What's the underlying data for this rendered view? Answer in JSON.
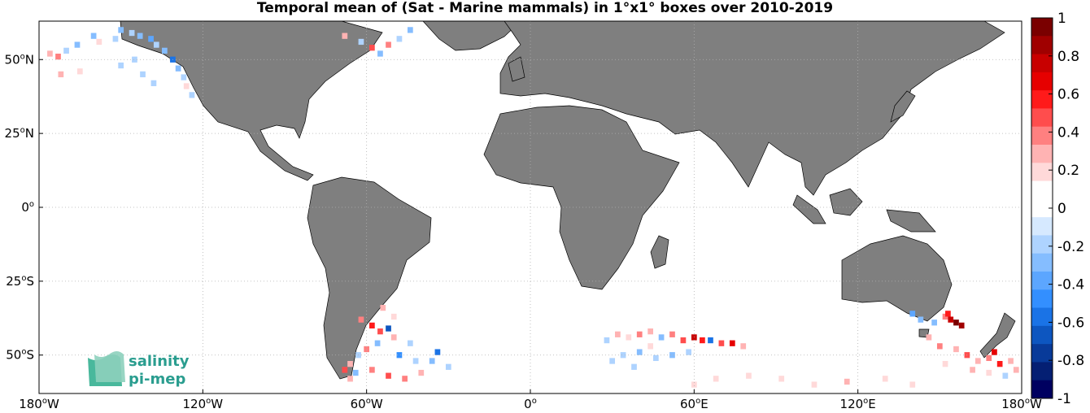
{
  "title": "Temporal mean of (Sat - Marine mammals) in 1°x1° boxes over 2010-2019",
  "map": {
    "projection": "equirectangular",
    "lon_range": [
      -180,
      180
    ],
    "lat_range": [
      -63,
      63
    ],
    "grid": "dotted",
    "land_color": "#7f7f7f",
    "ocean_color": "#ffffff",
    "x_ticks": [
      {
        "lon": -180,
        "deg": "180",
        "hemi": "W"
      },
      {
        "lon": -120,
        "deg": "120",
        "hemi": "W"
      },
      {
        "lon": -60,
        "deg": "60",
        "hemi": "W"
      },
      {
        "lon": 0,
        "deg": "0",
        "hemi": ""
      },
      {
        "lon": 60,
        "deg": "60",
        "hemi": "E"
      },
      {
        "lon": 120,
        "deg": "120",
        "hemi": "E"
      },
      {
        "lon": 180,
        "deg": "180",
        "hemi": "W"
      }
    ],
    "y_ticks": [
      {
        "lat": 50,
        "deg": "50",
        "hemi": "N"
      },
      {
        "lat": 25,
        "deg": "25",
        "hemi": "N"
      },
      {
        "lat": 0,
        "deg": "0",
        "hemi": ""
      },
      {
        "lat": -25,
        "deg": "25",
        "hemi": "S"
      },
      {
        "lat": -50,
        "deg": "50",
        "hemi": "S"
      }
    ]
  },
  "colorbar": {
    "min": -1,
    "max": 1,
    "tick_labels": [
      "1",
      "0.8",
      "0.6",
      "0.4",
      "0.2",
      "0",
      "-0.2",
      "-0.4",
      "-0.6",
      "-0.8",
      "-1"
    ],
    "tick_values": [
      1,
      0.8,
      0.6,
      0.4,
      0.2,
      0,
      -0.2,
      -0.4,
      -0.6,
      -0.8,
      -1
    ],
    "colors_top_to_bottom": [
      "#7a0000",
      "#a00000",
      "#c80000",
      "#e60000",
      "#ff1a1a",
      "#ff4d4d",
      "#ff8080",
      "#ffb3b3",
      "#ffd9d9",
      "#ffffff",
      "#ffffff",
      "#d6e9ff",
      "#aed3ff",
      "#85bdff",
      "#5ca6ff",
      "#338fff",
      "#1a73e6",
      "#0d56c0",
      "#083a99",
      "#041f73",
      "#000060"
    ]
  },
  "logo": {
    "line1": "salinity",
    "line2": "pi-mep"
  },
  "data_boxes": [
    {
      "lon": -176,
      "lat": 52,
      "v": 0.3
    },
    {
      "lon": -173,
      "lat": 51,
      "v": 0.4
    },
    {
      "lon": -170,
      "lat": 53,
      "v": -0.2
    },
    {
      "lon": -166,
      "lat": 55,
      "v": -0.3
    },
    {
      "lon": -160,
      "lat": 58,
      "v": -0.3
    },
    {
      "lon": -158,
      "lat": 56,
      "v": 0.2
    },
    {
      "lon": -152,
      "lat": 57,
      "v": -0.2
    },
    {
      "lon": -150,
      "lat": 60,
      "v": -0.3
    },
    {
      "lon": -146,
      "lat": 59,
      "v": -0.2
    },
    {
      "lon": -143,
      "lat": 58,
      "v": -0.3
    },
    {
      "lon": -139,
      "lat": 57,
      "v": -0.4
    },
    {
      "lon": -137,
      "lat": 55,
      "v": -0.2
    },
    {
      "lon": -134,
      "lat": 53,
      "v": -0.3
    },
    {
      "lon": -131,
      "lat": 50,
      "v": -0.6
    },
    {
      "lon": -129,
      "lat": 47,
      "v": -0.3
    },
    {
      "lon": -127,
      "lat": 44,
      "v": -0.2
    },
    {
      "lon": -126,
      "lat": 41,
      "v": 0.2
    },
    {
      "lon": -124,
      "lat": 38,
      "v": -0.2
    },
    {
      "lon": -145,
      "lat": 50,
      "v": -0.2
    },
    {
      "lon": -150,
      "lat": 48,
      "v": -0.2
    },
    {
      "lon": -142,
      "lat": 45,
      "v": -0.2
    },
    {
      "lon": -138,
      "lat": 42,
      "v": -0.2
    },
    {
      "lon": -172,
      "lat": 45,
      "v": 0.3
    },
    {
      "lon": -165,
      "lat": 46,
      "v": 0.2
    },
    {
      "lon": -68,
      "lat": 58,
      "v": 0.3
    },
    {
      "lon": -62,
      "lat": 56,
      "v": -0.2
    },
    {
      "lon": -58,
      "lat": 54,
      "v": 0.5
    },
    {
      "lon": -55,
      "lat": 52,
      "v": -0.3
    },
    {
      "lon": -52,
      "lat": 55,
      "v": 0.4
    },
    {
      "lon": -48,
      "lat": 57,
      "v": -0.2
    },
    {
      "lon": -44,
      "lat": 60,
      "v": -0.3
    },
    {
      "lon": -62,
      "lat": -38,
      "v": 0.4
    },
    {
      "lon": -58,
      "lat": -40,
      "v": 0.6
    },
    {
      "lon": -55,
      "lat": -42,
      "v": 0.5
    },
    {
      "lon": -52,
      "lat": -41,
      "v": -0.7
    },
    {
      "lon": -50,
      "lat": -44,
      "v": 0.3
    },
    {
      "lon": -56,
      "lat": -46,
      "v": -0.3
    },
    {
      "lon": -60,
      "lat": -48,
      "v": 0.4
    },
    {
      "lon": -63,
      "lat": -50,
      "v": -0.2
    },
    {
      "lon": -66,
      "lat": -53,
      "v": 0.3
    },
    {
      "lon": -64,
      "lat": -56,
      "v": -0.3
    },
    {
      "lon": -58,
      "lat": -55,
      "v": 0.4
    },
    {
      "lon": -52,
      "lat": -57,
      "v": 0.5
    },
    {
      "lon": -46,
      "lat": -58,
      "v": 0.4
    },
    {
      "lon": -40,
      "lat": -56,
      "v": 0.3
    },
    {
      "lon": -48,
      "lat": -50,
      "v": -0.5
    },
    {
      "lon": -42,
      "lat": -52,
      "v": -0.2
    },
    {
      "lon": -36,
      "lat": -52,
      "v": -0.3
    },
    {
      "lon": -30,
      "lat": -54,
      "v": -0.2
    },
    {
      "lon": -34,
      "lat": -49,
      "v": -0.6
    },
    {
      "lon": -44,
      "lat": -46,
      "v": -0.2
    },
    {
      "lon": -66,
      "lat": -58,
      "v": 0.3
    },
    {
      "lon": -68,
      "lat": -55,
      "v": 0.5
    },
    {
      "lon": -54,
      "lat": -34,
      "v": 0.3
    },
    {
      "lon": -50,
      "lat": -37,
      "v": 0.2
    },
    {
      "lon": 28,
      "lat": -45,
      "v": -0.2
    },
    {
      "lon": 32,
      "lat": -43,
      "v": 0.3
    },
    {
      "lon": 36,
      "lat": -44,
      "v": 0.2
    },
    {
      "lon": 40,
      "lat": -43,
      "v": 0.4
    },
    {
      "lon": 44,
      "lat": -42,
      "v": 0.3
    },
    {
      "lon": 48,
      "lat": -44,
      "v": -0.3
    },
    {
      "lon": 52,
      "lat": -43,
      "v": 0.4
    },
    {
      "lon": 56,
      "lat": -45,
      "v": 0.5
    },
    {
      "lon": 60,
      "lat": -44,
      "v": 0.8
    },
    {
      "lon": 63,
      "lat": -45,
      "v": 0.6
    },
    {
      "lon": 66,
      "lat": -45,
      "v": -0.6
    },
    {
      "lon": 70,
      "lat": -46,
      "v": 0.5
    },
    {
      "lon": 74,
      "lat": -46,
      "v": 0.7
    },
    {
      "lon": 78,
      "lat": -47,
      "v": 0.3
    },
    {
      "lon": 34,
      "lat": -50,
      "v": -0.2
    },
    {
      "lon": 40,
      "lat": -49,
      "v": -0.3
    },
    {
      "lon": 46,
      "lat": -51,
      "v": -0.2
    },
    {
      "lon": 52,
      "lat": -50,
      "v": -0.3
    },
    {
      "lon": 58,
      "lat": -49,
      "v": -0.2
    },
    {
      "lon": 30,
      "lat": -52,
      "v": -0.2
    },
    {
      "lon": 38,
      "lat": -54,
      "v": -0.2
    },
    {
      "lon": 44,
      "lat": -47,
      "v": 0.2
    },
    {
      "lon": 68,
      "lat": -58,
      "v": 0.2
    },
    {
      "lon": 80,
      "lat": -57,
      "v": 0.2
    },
    {
      "lon": 92,
      "lat": -58,
      "v": 0.2
    },
    {
      "lon": 104,
      "lat": -60,
      "v": 0.2
    },
    {
      "lon": 116,
      "lat": -59,
      "v": 0.3
    },
    {
      "lon": 130,
      "lat": -58,
      "v": 0.2
    },
    {
      "lon": 140,
      "lat": -60,
      "v": 0.2
    },
    {
      "lon": 60,
      "lat": -60,
      "v": 0.2
    },
    {
      "lon": 140,
      "lat": -36,
      "v": -0.4
    },
    {
      "lon": 143,
      "lat": -38,
      "v": -0.3
    },
    {
      "lon": 148,
      "lat": -39,
      "v": -0.3
    },
    {
      "lon": 152,
      "lat": -37,
      "v": 0.4
    },
    {
      "lon": 153,
      "lat": -36,
      "v": 0.6
    },
    {
      "lon": 154,
      "lat": -38,
      "v": 0.8
    },
    {
      "lon": 156,
      "lat": -39,
      "v": 1
    },
    {
      "lon": 158,
      "lat": -40,
      "v": 0.9
    },
    {
      "lon": 146,
      "lat": -44,
      "v": 0.3
    },
    {
      "lon": 150,
      "lat": -47,
      "v": 0.4
    },
    {
      "lon": 156,
      "lat": -48,
      "v": 0.3
    },
    {
      "lon": 160,
      "lat": -50,
      "v": 0.5
    },
    {
      "lon": 164,
      "lat": -52,
      "v": 0.3
    },
    {
      "lon": 168,
      "lat": -51,
      "v": 0.4
    },
    {
      "lon": 172,
      "lat": -53,
      "v": 0.6
    },
    {
      "lon": 176,
      "lat": -52,
      "v": 0.3
    },
    {
      "lon": 170,
      "lat": -49,
      "v": 0.7
    },
    {
      "lon": 162,
      "lat": -55,
      "v": 0.3
    },
    {
      "lon": 168,
      "lat": -56,
      "v": 0.2
    },
    {
      "lon": 174,
      "lat": -57,
      "v": -0.2
    },
    {
      "lon": 178,
      "lat": -55,
      "v": 0.3
    },
    {
      "lon": 152,
      "lat": -53,
      "v": 0.2
    }
  ]
}
